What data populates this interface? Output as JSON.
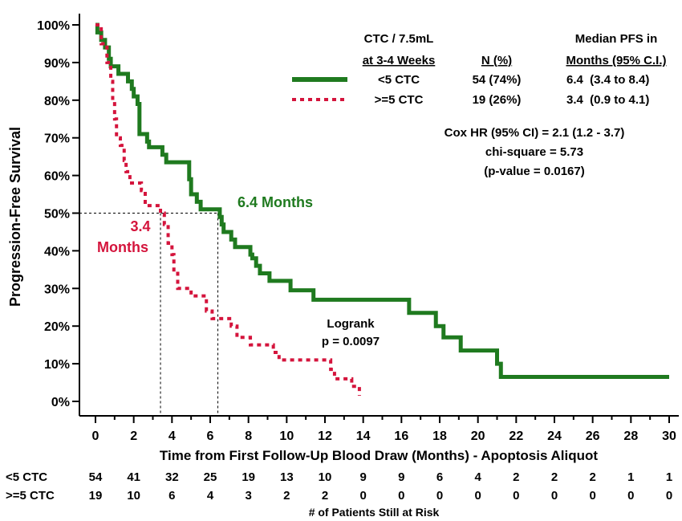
{
  "chart_data": {
    "type": "line",
    "subtype": "kaplan-meier",
    "xlabel": "Time from First Follow-Up Blood Draw (Months) - Apoptosis Aliquot",
    "ylabel": "Progression-Free Survival",
    "xlim": [
      0,
      30
    ],
    "ylim": [
      0,
      100
    ],
    "x_ticks": [
      "0",
      "2",
      "4",
      "6",
      "8",
      "10",
      "12",
      "14",
      "16",
      "18",
      "20",
      "22",
      "24",
      "26",
      "28",
      "30"
    ],
    "y_ticks": [
      "0%",
      "10%",
      "20%",
      "30%",
      "40%",
      "50%",
      "60%",
      "70%",
      "80%",
      "90%",
      "100%"
    ],
    "colors": {
      "lt5": "#1f7a1f",
      "ge5": "#d4143c"
    },
    "series": [
      {
        "key": "lt5",
        "name": "<5 CTC",
        "style": "solid",
        "points": [
          [
            0,
            100
          ],
          [
            0.1,
            98
          ],
          [
            0.3,
            96
          ],
          [
            0.5,
            94
          ],
          [
            0.7,
            91
          ],
          [
            0.8,
            89
          ],
          [
            1.2,
            87
          ],
          [
            1.7,
            85
          ],
          [
            1.9,
            83
          ],
          [
            2.0,
            81
          ],
          [
            2.2,
            79
          ],
          [
            2.3,
            71
          ],
          [
            2.7,
            69
          ],
          [
            2.8,
            67.5
          ],
          [
            3.5,
            65.5
          ],
          [
            3.7,
            63.5
          ],
          [
            4.8,
            63.5
          ],
          [
            4.9,
            59
          ],
          [
            5.0,
            55
          ],
          [
            5.3,
            53
          ],
          [
            5.5,
            51
          ],
          [
            6.5,
            49
          ],
          [
            6.6,
            47
          ],
          [
            6.7,
            45
          ],
          [
            7.1,
            43
          ],
          [
            7.3,
            41
          ],
          [
            8.1,
            39
          ],
          [
            8.2,
            38
          ],
          [
            8.4,
            36
          ],
          [
            8.6,
            34
          ],
          [
            9.1,
            32
          ],
          [
            10.2,
            29.5
          ],
          [
            11.4,
            27
          ],
          [
            16.4,
            23.5
          ],
          [
            17.8,
            20
          ],
          [
            18.2,
            17
          ],
          [
            19.1,
            13.5
          ],
          [
            21.0,
            10
          ],
          [
            21.2,
            6.5
          ],
          [
            30,
            6.5
          ]
        ]
      },
      {
        "key": "ge5",
        "name": ">=5 CTC",
        "style": "dotted",
        "points": [
          [
            0,
            100
          ],
          [
            0.3,
            95
          ],
          [
            0.6,
            90
          ],
          [
            0.8,
            85
          ],
          [
            0.9,
            80
          ],
          [
            1.0,
            75
          ],
          [
            1.1,
            70
          ],
          [
            1.3,
            68
          ],
          [
            1.5,
            64
          ],
          [
            1.6,
            61
          ],
          [
            1.8,
            58
          ],
          [
            2.4,
            56
          ],
          [
            2.6,
            52
          ],
          [
            3.4,
            50
          ],
          [
            3.6,
            47
          ],
          [
            3.8,
            42
          ],
          [
            4.0,
            39
          ],
          [
            4.1,
            34
          ],
          [
            4.3,
            30
          ],
          [
            5.0,
            28
          ],
          [
            5.8,
            24
          ],
          [
            6.1,
            22
          ],
          [
            7.1,
            20
          ],
          [
            7.4,
            17
          ],
          [
            8.1,
            15
          ],
          [
            9.3,
            13
          ],
          [
            9.6,
            11
          ],
          [
            12.3,
            8.5
          ],
          [
            12.5,
            6
          ],
          [
            13.4,
            4
          ],
          [
            13.8,
            1.5
          ]
        ]
      }
    ],
    "median_lines": [
      {
        "series": "<5 CTC",
        "x": 6.4,
        "y": 50,
        "label": "6.4 Months"
      },
      {
        "series": ">=5 CTC",
        "x": 3.4,
        "y": 50,
        "label_line1": "3.4",
        "label_line2": "Months"
      }
    ],
    "legend": {
      "placement": "top-right",
      "header": {
        "col1_line1": "CTC / 7.5mL",
        "col1_line2": "at 3-4 Weeks",
        "col2": "N (%)",
        "col3_line1": "Median PFS in",
        "col3_line2": "Months (95% C.I.)"
      },
      "rows": [
        {
          "label": "<5 CTC",
          "n": "54 (74%)",
          "median": "6.4  (3.4 to 8.4)"
        },
        {
          "label": ">=5 CTC",
          "n": "19 (26%)",
          "median": "3.4  (0.9 to 4.1)"
        }
      ]
    },
    "annotations": {
      "cox_line1": "Cox HR (95% CI) = 2.1 (1.2 - 3.7)",
      "cox_line2": "chi-square = 5.73",
      "cox_line3": "(p-value = 0.0167)",
      "logrank_line1": "Logrank",
      "logrank_line2": "p = 0.0097"
    },
    "risk_table": {
      "title": "# of Patients Still at Risk",
      "rows": [
        {
          "label": "<5 CTC",
          "values": [
            "54",
            "41",
            "32",
            "25",
            "19",
            "13",
            "10",
            "9",
            "9",
            "6",
            "4",
            "2",
            "2",
            "2",
            "1",
            "1"
          ]
        },
        {
          "label": ">=5 CTC",
          "values": [
            "19",
            "10",
            "6",
            "4",
            "3",
            "2",
            "2",
            "0",
            "0",
            "0",
            "0",
            "0",
            "0",
            "0",
            "0",
            "0"
          ]
        }
      ]
    }
  }
}
